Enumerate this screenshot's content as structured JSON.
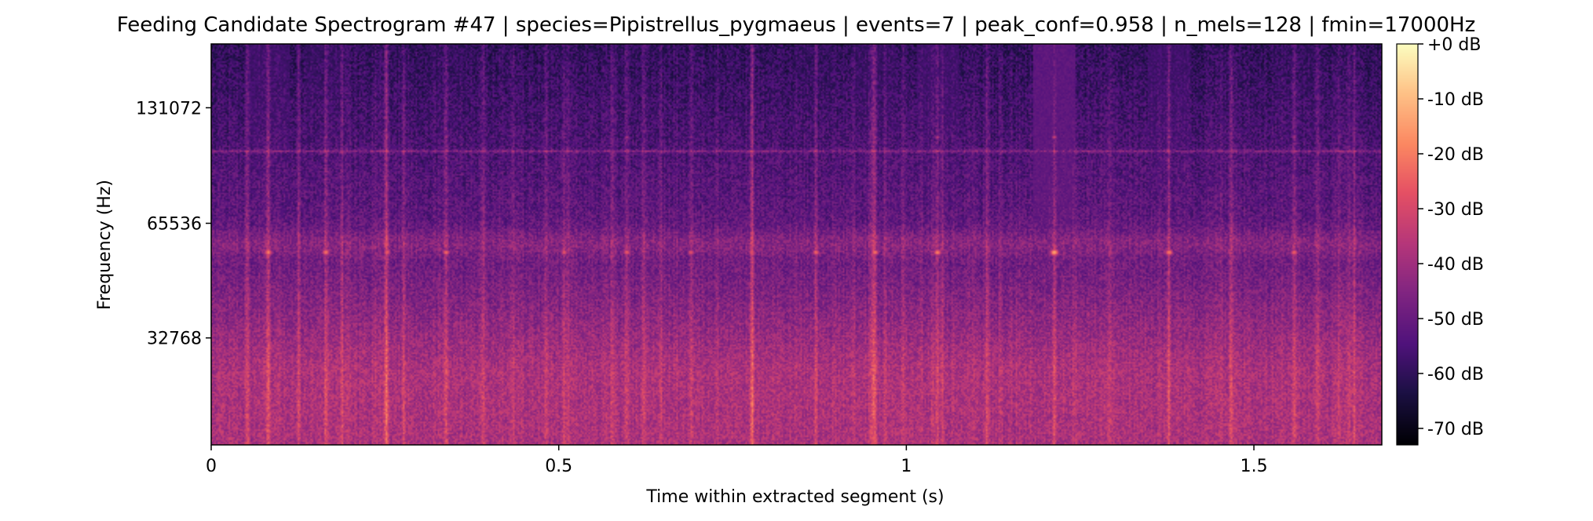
{
  "chart_data": {
    "type": "heatmap",
    "title": "Feeding Candidate Spectrogram #47 | species=Pipistrellus_pygmaeus | events=7 | peak_conf=0.958 | n_mels=128 | fmin=17000Hz",
    "xlabel": "Time within extracted segment (s)",
    "ylabel": "Frequency (Hz)",
    "xlim": [
      0,
      1.684
    ],
    "x_ticks": [
      {
        "value": 0,
        "label": "0"
      },
      {
        "value": 0.5,
        "label": "0.5"
      },
      {
        "value": 1.0,
        "label": "1"
      },
      {
        "value": 1.5,
        "label": "1.5"
      }
    ],
    "y_scale": "mel",
    "ylim_hz": [
      17000,
      192000
    ],
    "y_ticks": [
      {
        "value": 32768,
        "label": "32768"
      },
      {
        "value": 65536,
        "label": "65536"
      },
      {
        "value": 131072,
        "label": "131072"
      }
    ],
    "colormap": "magma",
    "colorbar": {
      "range_db": [
        -73,
        0
      ],
      "ticks": [
        {
          "value": 0,
          "label": "+0 dB"
        },
        {
          "value": -10,
          "label": "-10 dB"
        },
        {
          "value": -20,
          "label": "-20 dB"
        },
        {
          "value": -30,
          "label": "-30 dB"
        },
        {
          "value": -40,
          "label": "-40 dB"
        },
        {
          "value": -50,
          "label": "-50 dB"
        },
        {
          "value": -60,
          "label": "-60 dB"
        },
        {
          "value": -70,
          "label": "-70 dB"
        }
      ]
    },
    "background_db": {
      "low_band_hz": [
        17000,
        27000
      ],
      "low_band_level_db": -38,
      "mid_band_level_db": -50,
      "high_band_level_db": -60
    },
    "steady_line": {
      "freq_hz": 101000,
      "level_db": -48
    },
    "call_band_hz": 55000,
    "calls": [
      {
        "t": 0.082,
        "level_db": -12,
        "harmonic_db": -36
      },
      {
        "t": 0.165,
        "level_db": -14,
        "harmonic_db": -38
      },
      {
        "t": 0.253,
        "level_db": -18,
        "harmonic_db": -40
      },
      {
        "t": 0.338,
        "level_db": -16,
        "harmonic_db": -38
      },
      {
        "t": 0.508,
        "level_db": -20,
        "harmonic_db": -42
      },
      {
        "t": 0.598,
        "level_db": -18,
        "harmonic_db": -36
      },
      {
        "t": 0.69,
        "level_db": -20,
        "harmonic_db": -42
      },
      {
        "t": 0.778,
        "level_db": -20,
        "harmonic_db": -40
      },
      {
        "t": 0.87,
        "level_db": -16,
        "harmonic_db": -42
      },
      {
        "t": 0.955,
        "level_db": -14,
        "harmonic_db": -36
      },
      {
        "t": 1.045,
        "level_db": -12,
        "harmonic_db": -34
      },
      {
        "t": 1.213,
        "level_db": -6,
        "harmonic_db": -30
      },
      {
        "t": 1.293,
        "level_db": -26,
        "harmonic_db": -46
      },
      {
        "t": 1.378,
        "level_db": -12,
        "harmonic_db": -36
      },
      {
        "t": 1.465,
        "level_db": -28,
        "harmonic_db": -46
      },
      {
        "t": 1.558,
        "level_db": -16,
        "harmonic_db": -38
      },
      {
        "t": 1.652,
        "level_db": -30,
        "harmonic_db": -50
      }
    ]
  }
}
